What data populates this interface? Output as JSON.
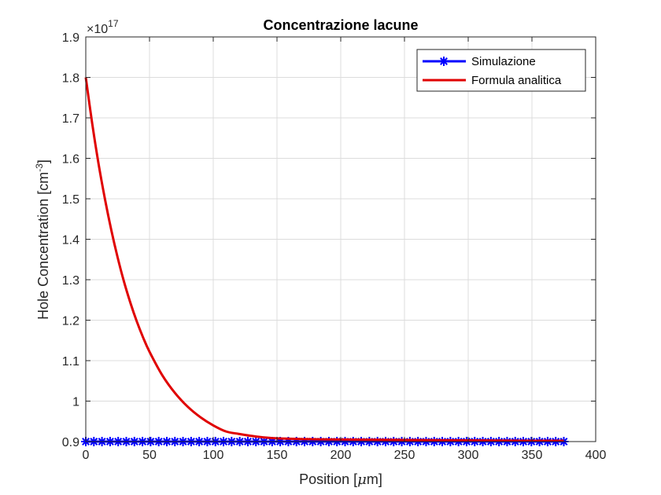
{
  "chart_data": {
    "type": "line",
    "title": "Concentrazione lacune",
    "xlabel_main": "Position [",
    "xlabel_mu": "μ",
    "xlabel_end": "m]",
    "ylabel_main": "Hole Concentration [cm",
    "ylabel_sup": "-3",
    "ylabel_end": "]",
    "y_multiplier_base": "×10",
    "y_multiplier_exp": "17",
    "xlim": [
      0,
      400
    ],
    "ylim": [
      0.9,
      1.9
    ],
    "xticks": [
      0,
      50,
      100,
      150,
      200,
      250,
      300,
      350,
      400
    ],
    "yticks": [
      0.9,
      1,
      1.1,
      1.2,
      1.3,
      1.4,
      1.5,
      1.6,
      1.7,
      1.8,
      1.9
    ],
    "xtick_labels": [
      "0",
      "50",
      "100",
      "150",
      "200",
      "250",
      "300",
      "350",
      "400"
    ],
    "ytick_labels": [
      "0.9",
      "1",
      "1.1",
      "1.2",
      "1.3",
      "1.4",
      "1.5",
      "1.6",
      "1.7",
      "1.8",
      "1.9"
    ],
    "grid": true,
    "legend_position": "top-right",
    "series": [
      {
        "name": "Simulazione",
        "color": "#0000ff",
        "marker": "asterisk",
        "x_start": 0,
        "x_end": 375,
        "n_points": 60,
        "y_constant": 0.9
      },
      {
        "name": "Formula analitica",
        "color": "#e00000",
        "x": [
          0,
          5,
          10,
          15,
          20,
          25,
          30,
          35,
          40,
          45,
          50,
          60,
          70,
          80,
          90,
          100,
          110,
          120,
          135,
          150,
          175,
          200,
          250,
          300,
          350,
          375
        ],
        "y": [
          1.8,
          1.687,
          1.587,
          1.5,
          1.423,
          1.355,
          1.295,
          1.243,
          1.197,
          1.157,
          1.122,
          1.064,
          1.02,
          0.986,
          0.96,
          0.94,
          0.925,
          0.919,
          0.912,
          0.908,
          0.906,
          0.905,
          0.904,
          0.903,
          0.902,
          0.902
        ]
      }
    ]
  }
}
